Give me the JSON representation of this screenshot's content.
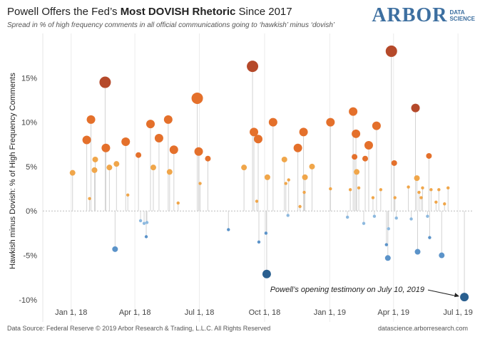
{
  "header": {
    "title_pre": "Powell Offers the Fed’s ",
    "title_bold": "Most DOVISH Rhetoric",
    "title_post": " Since 2017",
    "subtitle": "Spread in % of high frequency comments in all official communications going to ‘hawkish’ minus ‘dovish’"
  },
  "logo": {
    "main": "ARBOR",
    "sub1": "DATA",
    "sub2": "SCIENCE"
  },
  "footer": {
    "source": "Data Source: Federal Reserve © 2019 Arbor Research & Trading, L.L.C. All Rights Reserved",
    "url": "datascience.arborresearch.com"
  },
  "colors": {
    "dark_red": "#b5492a",
    "orange": "#e4702b",
    "light_orange": "#f0a64a",
    "light_blue": "#8db9df",
    "mid_blue": "#5b93c9",
    "dark_blue": "#2a5f8f",
    "stem": "#d3d3d3"
  },
  "chart_data": {
    "type": "scatter",
    "subtype": "lollipop",
    "title": "Powell Offers the Fed’s Most DOVISH Rhetoric Since 2017",
    "xlabel": "",
    "ylabel": "Hawkish minus Dovish: % of High Frequency Comments",
    "x_ticks": [
      "Jan 1, 18",
      "Apr 1, 18",
      "Jul 1, 18",
      "Oct 1, 18",
      "Jan 1, 19",
      "Apr 1, 19",
      "Jul 1, 19"
    ],
    "y_ticks": [
      "15%",
      "10%",
      "5%",
      "0%",
      "-5%",
      "-10%"
    ],
    "y_tick_values": [
      15,
      10,
      5,
      0,
      -5,
      -10
    ],
    "xlim_days_from_jan1_2018": [
      -40,
      566
    ],
    "ylim": [
      -12.5,
      20
    ],
    "annotation": {
      "text": "Powell’s opening testimony on July 10, 2019",
      "day": 555,
      "value": -9.7
    },
    "points": [
      {
        "day": 2,
        "value": 4.3,
        "size": "s",
        "color": "light_orange"
      },
      {
        "day": 22,
        "value": 8.0,
        "size": "m",
        "color": "orange"
      },
      {
        "day": 26,
        "value": 1.4,
        "size": "xs",
        "color": "light_orange"
      },
      {
        "day": 28,
        "value": 10.3,
        "size": "m",
        "color": "orange"
      },
      {
        "day": 33,
        "value": 4.6,
        "size": "s",
        "color": "light_orange"
      },
      {
        "day": 34,
        "value": 5.8,
        "size": "s",
        "color": "light_orange"
      },
      {
        "day": 48,
        "value": 14.5,
        "size": "l",
        "color": "dark_red"
      },
      {
        "day": 49,
        "value": 7.1,
        "size": "m",
        "color": "orange"
      },
      {
        "day": 54,
        "value": 4.9,
        "size": "s",
        "color": "light_orange"
      },
      {
        "day": 62,
        "value": -4.3,
        "size": "s",
        "color": "mid_blue"
      },
      {
        "day": 64,
        "value": 5.3,
        "size": "s",
        "color": "light_orange"
      },
      {
        "day": 77,
        "value": 7.8,
        "size": "m",
        "color": "orange"
      },
      {
        "day": 80,
        "value": 1.8,
        "size": "xs",
        "color": "light_orange"
      },
      {
        "day": 95,
        "value": 6.3,
        "size": "s",
        "color": "orange"
      },
      {
        "day": 98,
        "value": -1.1,
        "size": "xs",
        "color": "light_blue"
      },
      {
        "day": 103,
        "value": -1.4,
        "size": "xs",
        "color": "light_blue"
      },
      {
        "day": 106,
        "value": -2.9,
        "size": "xs",
        "color": "mid_blue"
      },
      {
        "day": 107,
        "value": -1.3,
        "size": "xs",
        "color": "light_blue"
      },
      {
        "day": 112,
        "value": 9.8,
        "size": "m",
        "color": "orange"
      },
      {
        "day": 116,
        "value": 4.9,
        "size": "s",
        "color": "light_orange"
      },
      {
        "day": 124,
        "value": 8.2,
        "size": "m",
        "color": "orange"
      },
      {
        "day": 137,
        "value": 10.3,
        "size": "m",
        "color": "orange"
      },
      {
        "day": 139,
        "value": 4.4,
        "size": "s",
        "color": "light_orange"
      },
      {
        "day": 145,
        "value": 6.9,
        "size": "m",
        "color": "orange"
      },
      {
        "day": 151,
        "value": 0.9,
        "size": "xs",
        "color": "light_orange"
      },
      {
        "day": 178,
        "value": 12.7,
        "size": "l",
        "color": "orange"
      },
      {
        "day": 180,
        "value": 6.7,
        "size": "m",
        "color": "orange"
      },
      {
        "day": 182,
        "value": 3.1,
        "size": "xs",
        "color": "light_orange"
      },
      {
        "day": 193,
        "value": 5.9,
        "size": "s",
        "color": "orange"
      },
      {
        "day": 222,
        "value": -2.1,
        "size": "xs",
        "color": "mid_blue"
      },
      {
        "day": 244,
        "value": 4.9,
        "size": "s",
        "color": "light_orange"
      },
      {
        "day": 256,
        "value": 16.3,
        "size": "l",
        "color": "dark_red"
      },
      {
        "day": 258,
        "value": 8.9,
        "size": "m",
        "color": "orange"
      },
      {
        "day": 262,
        "value": 1.1,
        "size": "xs",
        "color": "light_orange"
      },
      {
        "day": 264,
        "value": 8.1,
        "size": "m",
        "color": "orange"
      },
      {
        "day": 265,
        "value": -3.5,
        "size": "xs",
        "color": "mid_blue"
      },
      {
        "day": 275,
        "value": -2.5,
        "size": "xs",
        "color": "mid_blue"
      },
      {
        "day": 276,
        "value": -7.1,
        "size": "m",
        "color": "dark_blue"
      },
      {
        "day": 277,
        "value": 3.8,
        "size": "s",
        "color": "light_orange"
      },
      {
        "day": 285,
        "value": 10.0,
        "size": "m",
        "color": "orange"
      },
      {
        "day": 301,
        "value": 5.8,
        "size": "s",
        "color": "light_orange"
      },
      {
        "day": 303,
        "value": 3.1,
        "size": "xs",
        "color": "light_orange"
      },
      {
        "day": 306,
        "value": -0.5,
        "size": "xs",
        "color": "light_blue"
      },
      {
        "day": 307,
        "value": 3.5,
        "size": "xs",
        "color": "light_orange"
      },
      {
        "day": 320,
        "value": 7.1,
        "size": "m",
        "color": "orange"
      },
      {
        "day": 323,
        "value": 0.5,
        "size": "xs",
        "color": "light_orange"
      },
      {
        "day": 328,
        "value": 8.9,
        "size": "m",
        "color": "orange"
      },
      {
        "day": 329,
        "value": 2.1,
        "size": "xs",
        "color": "light_orange"
      },
      {
        "day": 330,
        "value": 3.8,
        "size": "s",
        "color": "light_orange"
      },
      {
        "day": 340,
        "value": 5.0,
        "size": "s",
        "color": "light_orange"
      },
      {
        "day": 366,
        "value": 10.0,
        "size": "m",
        "color": "orange"
      },
      {
        "day": 366,
        "value": 2.5,
        "size": "xs",
        "color": "light_orange"
      },
      {
        "day": 390,
        "value": -0.7,
        "size": "xs",
        "color": "light_blue"
      },
      {
        "day": 394,
        "value": 2.4,
        "size": "xs",
        "color": "light_orange"
      },
      {
        "day": 398,
        "value": 11.2,
        "size": "m",
        "color": "orange"
      },
      {
        "day": 400,
        "value": 6.1,
        "size": "s",
        "color": "orange"
      },
      {
        "day": 402,
        "value": 8.7,
        "size": "m",
        "color": "orange"
      },
      {
        "day": 403,
        "value": 4.4,
        "size": "s",
        "color": "light_orange"
      },
      {
        "day": 406,
        "value": 2.6,
        "size": "xs",
        "color": "light_orange"
      },
      {
        "day": 413,
        "value": -1.4,
        "size": "xs",
        "color": "light_blue"
      },
      {
        "day": 415,
        "value": 5.9,
        "size": "s",
        "color": "orange"
      },
      {
        "day": 420,
        "value": 7.4,
        "size": "m",
        "color": "orange"
      },
      {
        "day": 426,
        "value": 1.5,
        "size": "xs",
        "color": "light_orange"
      },
      {
        "day": 428,
        "value": -0.6,
        "size": "xs",
        "color": "light_blue"
      },
      {
        "day": 431,
        "value": 9.6,
        "size": "m",
        "color": "orange"
      },
      {
        "day": 437,
        "value": 2.4,
        "size": "xs",
        "color": "light_orange"
      },
      {
        "day": 445,
        "value": -3.8,
        "size": "xs",
        "color": "mid_blue"
      },
      {
        "day": 447,
        "value": -5.3,
        "size": "s",
        "color": "mid_blue"
      },
      {
        "day": 448,
        "value": -2.0,
        "size": "xs",
        "color": "light_blue"
      },
      {
        "day": 452,
        "value": 18.0,
        "size": "l",
        "color": "dark_red"
      },
      {
        "day": 456,
        "value": 5.4,
        "size": "s",
        "color": "orange"
      },
      {
        "day": 457,
        "value": 1.5,
        "size": "xs",
        "color": "light_orange"
      },
      {
        "day": 459,
        "value": -0.8,
        "size": "xs",
        "color": "light_blue"
      },
      {
        "day": 476,
        "value": 2.7,
        "size": "xs",
        "color": "light_orange"
      },
      {
        "day": 480,
        "value": -0.9,
        "size": "xs",
        "color": "light_blue"
      },
      {
        "day": 486,
        "value": 11.6,
        "size": "m",
        "color": "dark_red"
      },
      {
        "day": 488,
        "value": 3.7,
        "size": "s",
        "color": "light_orange"
      },
      {
        "day": 489,
        "value": -4.6,
        "size": "s",
        "color": "mid_blue"
      },
      {
        "day": 491,
        "value": 2.1,
        "size": "xs",
        "color": "light_orange"
      },
      {
        "day": 494,
        "value": 1.5,
        "size": "xs",
        "color": "light_orange"
      },
      {
        "day": 496,
        "value": 2.6,
        "size": "xs",
        "color": "light_orange"
      },
      {
        "day": 503,
        "value": -0.6,
        "size": "xs",
        "color": "light_blue"
      },
      {
        "day": 505,
        "value": 6.2,
        "size": "s",
        "color": "orange"
      },
      {
        "day": 506,
        "value": -3.0,
        "size": "xs",
        "color": "mid_blue"
      },
      {
        "day": 508,
        "value": 2.4,
        "size": "xs",
        "color": "light_orange"
      },
      {
        "day": 515,
        "value": 1.0,
        "size": "xs",
        "color": "light_orange"
      },
      {
        "day": 519,
        "value": 2.4,
        "size": "xs",
        "color": "light_orange"
      },
      {
        "day": 523,
        "value": -5.0,
        "size": "s",
        "color": "mid_blue"
      },
      {
        "day": 527,
        "value": 0.8,
        "size": "xs",
        "color": "light_orange"
      },
      {
        "day": 532,
        "value": 2.6,
        "size": "xs",
        "color": "light_orange"
      },
      {
        "day": 555,
        "value": -9.7,
        "size": "m",
        "color": "dark_blue"
      }
    ]
  }
}
